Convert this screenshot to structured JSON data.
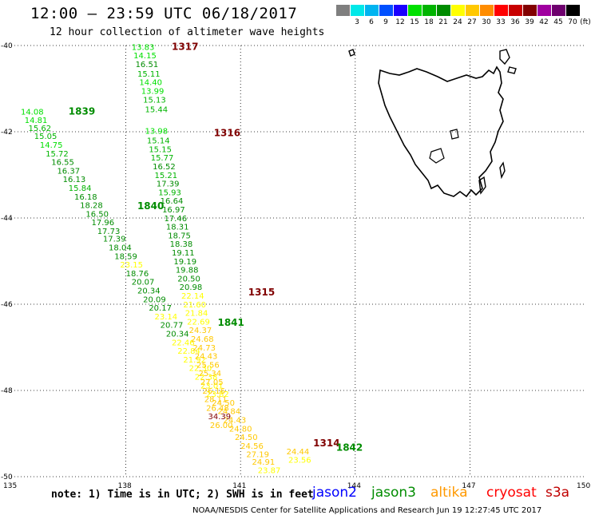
{
  "header": {
    "title": "12:00 — 23:59 UTC 06/18/2017",
    "subtitle": "12 hour collection of altimeter wave heights"
  },
  "legend": {
    "unit": "(ft)",
    "items": [
      {
        "label": "",
        "color": "#7f7f7f"
      },
      {
        "label": "3",
        "color": "#00e8e8"
      },
      {
        "label": "6",
        "color": "#00b4f0"
      },
      {
        "label": "9",
        "color": "#0050ff"
      },
      {
        "label": "12",
        "color": "#1a00ff"
      },
      {
        "label": "15",
        "color": "#00e000"
      },
      {
        "label": "18",
        "color": "#00b400"
      },
      {
        "label": "21",
        "color": "#008c00"
      },
      {
        "label": "24",
        "color": "#ffff00"
      },
      {
        "label": "27",
        "color": "#ffc800"
      },
      {
        "label": "30",
        "color": "#ff8c00"
      },
      {
        "label": "33",
        "color": "#ff0000"
      },
      {
        "label": "36",
        "color": "#c80000"
      },
      {
        "label": "39",
        "color": "#820000"
      },
      {
        "label": "42",
        "color": "#a000a0"
      },
      {
        "label": "45",
        "color": "#6e006e"
      },
      {
        "label": "70",
        "color": "#000000"
      }
    ]
  },
  "axes": {
    "lat_labels": [
      "-40",
      "-42",
      "-44",
      "-46",
      "-48",
      "-50"
    ],
    "lon_labels": [
      "135",
      "138",
      "141",
      "144",
      "147",
      "150"
    ],
    "lat_values": [
      -40,
      -42,
      -44,
      -46,
      -48,
      -50
    ],
    "lon_values": [
      135,
      138,
      141,
      144,
      147,
      150
    ]
  },
  "passes": [
    {
      "id": "1317",
      "color": "#800000",
      "lon": 139.2,
      "lat": -40.1
    },
    {
      "id": "1839",
      "color": "#008c00",
      "lon": 136.5,
      "lat": -41.6
    },
    {
      "id": "1316",
      "color": "#800000",
      "lon": 140.3,
      "lat": -42.1
    },
    {
      "id": "1840",
      "color": "#008c00",
      "lon": 138.3,
      "lat": -43.8
    },
    {
      "id": "1315",
      "color": "#800000",
      "lon": 141.2,
      "lat": -45.8
    },
    {
      "id": "1841",
      "color": "#008c00",
      "lon": 140.4,
      "lat": -46.5
    },
    {
      "id": "1314",
      "color": "#800000",
      "lon": 142.9,
      "lat": -49.3
    },
    {
      "id": "1842",
      "color": "#008c00",
      "lon": 143.5,
      "lat": -49.4
    }
  ],
  "tracks": [
    {
      "name": "track-1317",
      "points": [
        [
          "13.83",
          "#00e000",
          138.15,
          -40.1
        ],
        [
          "14.15",
          "#00e000",
          138.2,
          -40.3
        ],
        [
          "16.51",
          "#008c00",
          138.25,
          -40.5
        ],
        [
          "15.11",
          "#00b400",
          138.3,
          -40.72
        ],
        [
          "14.40",
          "#00e000",
          138.35,
          -40.92
        ],
        [
          "13.99",
          "#00e000",
          138.4,
          -41.12
        ],
        [
          "15.13",
          "#00b400",
          138.45,
          -41.32
        ],
        [
          "15.44",
          "#00b400",
          138.5,
          -41.55
        ]
      ]
    },
    {
      "name": "track-1839",
      "points": [
        [
          "14.08",
          "#00e000",
          135.25,
          -41.6
        ],
        [
          "14.81",
          "#00e000",
          135.35,
          -41.8
        ],
        [
          "15.62",
          "#00b400",
          135.45,
          -41.98
        ],
        [
          "15.05",
          "#00b400",
          135.6,
          -42.17
        ],
        [
          "14.75",
          "#00e000",
          135.75,
          -42.37
        ],
        [
          "15.72",
          "#00b400",
          135.9,
          -42.57
        ],
        [
          "16.55",
          "#008c00",
          136.05,
          -42.77
        ],
        [
          "16.37",
          "#008c00",
          136.2,
          -42.97
        ],
        [
          "16.13",
          "#008c00",
          136.35,
          -43.17
        ],
        [
          "15.84",
          "#00b400",
          136.5,
          -43.37
        ],
        [
          "16.18",
          "#008c00",
          136.65,
          -43.57
        ],
        [
          "18.28",
          "#008c00",
          136.8,
          -43.77
        ],
        [
          "16.50",
          "#008c00",
          136.95,
          -43.97
        ],
        [
          "17.96",
          "#008c00",
          137.1,
          -44.17
        ],
        [
          "17.73",
          "#008c00",
          137.25,
          -44.37
        ],
        [
          "17.39",
          "#008c00",
          137.4,
          -44.55
        ],
        [
          "18.04",
          "#008c00",
          137.55,
          -44.75
        ],
        [
          "18.59",
          "#008c00",
          137.7,
          -44.95
        ],
        [
          "23.15",
          "#ffff00",
          137.85,
          -45.15
        ],
        [
          "18.76",
          "#008c00",
          138.0,
          -45.35
        ],
        [
          "20.07",
          "#008c00",
          138.15,
          -45.55
        ],
        [
          "20.34",
          "#008c00",
          138.3,
          -45.75
        ],
        [
          "20.09",
          "#008c00",
          138.45,
          -45.95
        ],
        [
          "20.17",
          "#008c00",
          138.6,
          -46.15
        ],
        [
          "23.14",
          "#ffff00",
          138.75,
          -46.35
        ],
        [
          "20.77",
          "#008c00",
          138.9,
          -46.55
        ],
        [
          "20.34",
          "#008c00",
          139.05,
          -46.75
        ],
        [
          "22.46",
          "#ffff00",
          139.2,
          -46.95
        ],
        [
          "22.84",
          "#ffff00",
          139.35,
          -47.15
        ],
        [
          "21.92",
          "#ffff00",
          139.5,
          -47.35
        ],
        [
          "22.30",
          "#ffff00",
          139.65,
          -47.55
        ],
        [
          "22.38",
          "#ffff00",
          139.8,
          -47.75
        ],
        [
          "23.01",
          "#ffff00",
          139.95,
          -47.95
        ],
        [
          "23.82",
          "#ffff00",
          140.1,
          -48.15
        ],
        [
          "24.50",
          "#ffc800",
          140.25,
          -48.35
        ],
        [
          "24.84",
          "#ffc800",
          140.4,
          -48.55
        ],
        [
          "24.43",
          "#ffc800",
          140.55,
          -48.75
        ],
        [
          "24.80",
          "#ffc800",
          140.7,
          -48.95
        ],
        [
          "24.50",
          "#ffc800",
          140.85,
          -49.15
        ],
        [
          "24.56",
          "#ffc800",
          141.0,
          -49.35
        ],
        [
          "27.19",
          "#ffc800",
          141.15,
          -49.55
        ],
        [
          "24.91",
          "#ffc800",
          141.3,
          -49.72
        ],
        [
          "23.87",
          "#ffff00",
          141.45,
          -49.92
        ]
      ]
    },
    {
      "name": "track-1316",
      "points": [
        [
          "13.98",
          "#00e000",
          138.5,
          -42.05
        ],
        [
          "15.14",
          "#00b400",
          138.55,
          -42.27
        ],
        [
          "15.15",
          "#00b400",
          138.6,
          -42.47
        ],
        [
          "15.77",
          "#00b400",
          138.65,
          -42.67
        ],
        [
          "16.52",
          "#008c00",
          138.7,
          -42.87
        ],
        [
          "15.21",
          "#00b400",
          138.75,
          -43.07
        ],
        [
          "17.39",
          "#008c00",
          138.8,
          -43.27
        ],
        [
          "15.93",
          "#00b400",
          138.85,
          -43.47
        ],
        [
          "16.64",
          "#008c00",
          138.9,
          -43.67
        ],
        [
          "16.97",
          "#008c00",
          138.95,
          -43.87
        ],
        [
          "17.46",
          "#008c00",
          139.0,
          -44.07
        ],
        [
          "18.31",
          "#008c00",
          139.05,
          -44.27
        ],
        [
          "18.75",
          "#008c00",
          139.1,
          -44.47
        ],
        [
          "18.38",
          "#008c00",
          139.15,
          -44.67
        ],
        [
          "19.11",
          "#008c00",
          139.2,
          -44.87
        ],
        [
          "19.19",
          "#008c00",
          139.25,
          -45.07
        ],
        [
          "19.88",
          "#008c00",
          139.3,
          -45.27
        ],
        [
          "20.50",
          "#008c00",
          139.35,
          -45.47
        ],
        [
          "20.98",
          "#008c00",
          139.4,
          -45.67
        ],
        [
          "22.14",
          "#ffff00",
          139.45,
          -45.87
        ],
        [
          "21.60",
          "#ffff00",
          139.5,
          -46.07
        ],
        [
          "21.84",
          "#ffff00",
          139.55,
          -46.27
        ],
        [
          "22.69",
          "#ffff00",
          139.6,
          -46.47
        ],
        [
          "24.37",
          "#ffc800",
          139.65,
          -46.67
        ],
        [
          "24.68",
          "#ffc800",
          139.7,
          -46.87
        ],
        [
          "24.73",
          "#ffc800",
          139.75,
          -47.07
        ],
        [
          "24.43",
          "#ffc800",
          139.8,
          -47.27
        ],
        [
          "25.56",
          "#ffc800",
          139.85,
          -47.47
        ],
        [
          "25.34",
          "#ffc800",
          139.9,
          -47.67
        ],
        [
          "27.05",
          "#ffc800",
          139.95,
          -47.87
        ],
        [
          "26.16",
          "#ffc800",
          140.0,
          -48.07
        ],
        [
          "28.11",
          "#ffc800",
          140.05,
          -48.27
        ],
        [
          "26.48",
          "#ffc800",
          140.1,
          -48.47
        ],
        [
          "34.39",
          "#820000",
          140.15,
          -48.67
        ],
        [
          "26.00",
          "#ffc800",
          140.2,
          -48.87
        ]
      ]
    },
    {
      "name": "track-1315",
      "points": [
        [
          "24.44",
          "#ffc800",
          142.2,
          -49.48
        ],
        [
          "23.56",
          "#ffff00",
          142.25,
          -49.68
        ]
      ]
    }
  ],
  "footer": {
    "note": "note: 1) Time is in UTC; 2) SWH is in feet",
    "satellites": [
      {
        "name": "jason2",
        "color": "#0000ff"
      },
      {
        "name": "jason3",
        "color": "#008c00"
      },
      {
        "name": "altika",
        "color": "#ff9900"
      },
      {
        "name": "cryosat",
        "color": "#ff0000"
      },
      {
        "name": "s3a",
        "color": "#c00000"
      }
    ],
    "credit": "NOAA/NESDIS Center for Satellite Applications and Research    Jun 19 12:27:45 UTC 2017"
  }
}
